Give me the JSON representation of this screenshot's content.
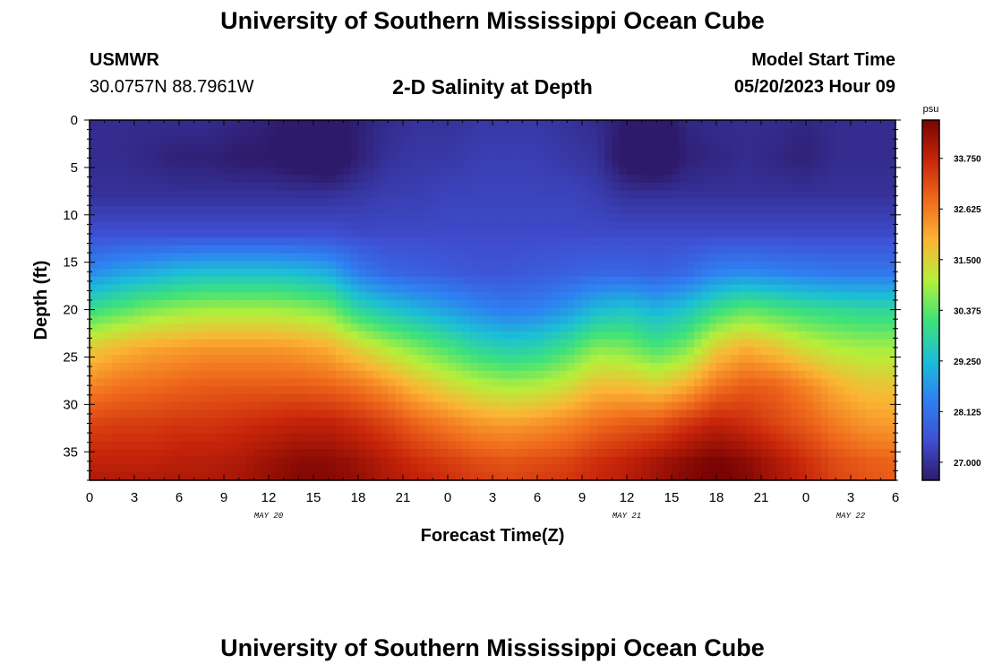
{
  "header": {
    "title": "University of Southern Mississippi Ocean Cube",
    "station_name": "USMWR",
    "station_coords": "30.0757N  88.7961W",
    "chart_title": "2-D Salinity at Depth",
    "model_label": "Model Start Time",
    "model_time": "05/20/2023 Hour 09"
  },
  "footer": {
    "title": "University of Southern Mississippi Ocean Cube"
  },
  "chart_data": {
    "type": "heatmap",
    "title": "2-D Salinity at Depth",
    "xlabel": "Forecast Time(Z)",
    "ylabel": "Depth (ft)",
    "x_tick_labels": [
      "0",
      "3",
      "6",
      "9",
      "12",
      "15",
      "18",
      "21",
      "0",
      "3",
      "6",
      "9",
      "12",
      "15",
      "18",
      "21",
      "0",
      "3",
      "6"
    ],
    "x_hours": [
      0,
      3,
      6,
      9,
      12,
      15,
      18,
      21,
      24,
      27,
      30,
      33,
      36,
      39,
      42,
      45,
      48,
      51,
      54
    ],
    "date_labels": [
      {
        "text": "MAY 20",
        "hour": 12
      },
      {
        "text": "MAY 21",
        "hour": 36
      },
      {
        "text": "MAY 22",
        "hour": 51
      }
    ],
    "x_range_hours": [
      0,
      54
    ],
    "y_ticks": [
      0,
      5,
      10,
      15,
      20,
      25,
      30,
      35
    ],
    "ylim": [
      0,
      38
    ],
    "y_inverted": true,
    "colorbar": {
      "unit": "psu",
      "ticks": [
        27.0,
        28.125,
        29.25,
        30.375,
        31.5,
        32.625,
        33.75
      ],
      "tick_labels": [
        "27.000",
        "28.125",
        "29.250",
        "30.375",
        "31.500",
        "32.625",
        "33.750"
      ],
      "range": [
        26.6,
        34.6
      ],
      "colors": [
        "#2e1a6b",
        "#3f4fd3",
        "#2f7ff2",
        "#1bbfd6",
        "#3ee27a",
        "#b6ef3a",
        "#fbb534",
        "#f06a1c",
        "#c8250a",
        "#7a0403"
      ]
    },
    "grid": {
      "hours": [
        0,
        2,
        4,
        6,
        8,
        10,
        12,
        14,
        16,
        18,
        20,
        22,
        24,
        26,
        28,
        30,
        32,
        34,
        36,
        38,
        40,
        42,
        44,
        46,
        48,
        50,
        52,
        54
      ],
      "depths": [
        0,
        4,
        8,
        12,
        16,
        20,
        24,
        28,
        32,
        36,
        38
      ],
      "values": [
        [
          26.9,
          26.9,
          26.9,
          26.9,
          26.9,
          26.8,
          26.7,
          26.5,
          26.4,
          26.7,
          26.9,
          27.0,
          27.0,
          27.1,
          27.1,
          27.1,
          27.0,
          26.9,
          26.6,
          26.4,
          26.8,
          26.9,
          26.9,
          26.9,
          26.8,
          26.9,
          26.9,
          26.9
        ],
        [
          26.9,
          26.9,
          26.8,
          26.7,
          26.7,
          26.6,
          26.6,
          26.4,
          26.2,
          26.7,
          27.0,
          27.1,
          27.1,
          27.2,
          27.2,
          27.2,
          27.1,
          27.0,
          26.4,
          26.2,
          26.7,
          26.8,
          26.9,
          26.8,
          26.7,
          26.9,
          26.9,
          26.9
        ],
        [
          27.0,
          27.0,
          27.0,
          27.0,
          27.0,
          27.0,
          27.0,
          27.0,
          27.0,
          27.1,
          27.2,
          27.2,
          27.3,
          27.3,
          27.3,
          27.3,
          27.3,
          27.2,
          27.0,
          27.0,
          27.0,
          27.0,
          27.0,
          27.0,
          27.0,
          27.0,
          27.0,
          27.0
        ],
        [
          27.5,
          27.5,
          27.5,
          27.5,
          27.5,
          27.5,
          27.5,
          27.5,
          27.5,
          27.4,
          27.4,
          27.4,
          27.4,
          27.4,
          27.4,
          27.4,
          27.4,
          27.4,
          27.4,
          27.4,
          27.4,
          27.4,
          27.4,
          27.4,
          27.4,
          27.4,
          27.4,
          27.4
        ],
        [
          28.5,
          28.8,
          29.0,
          29.2,
          29.3,
          29.3,
          29.3,
          29.2,
          29.0,
          28.3,
          27.9,
          27.8,
          27.7,
          27.6,
          27.6,
          27.7,
          27.8,
          27.9,
          27.9,
          27.8,
          28.0,
          28.4,
          28.5,
          28.4,
          28.3,
          28.2,
          28.2,
          28.2
        ],
        [
          30.0,
          30.3,
          30.6,
          30.8,
          30.9,
          30.9,
          30.9,
          30.8,
          30.6,
          29.8,
          29.4,
          29.1,
          28.8,
          28.5,
          28.3,
          28.4,
          28.7,
          29.2,
          29.4,
          29.1,
          29.4,
          30.0,
          30.4,
          30.2,
          30.0,
          29.9,
          29.8,
          29.8
        ],
        [
          31.6,
          31.9,
          32.1,
          32.2,
          32.3,
          32.3,
          32.3,
          32.2,
          32.0,
          31.5,
          31.0,
          30.6,
          30.2,
          29.8,
          29.6,
          29.7,
          30.1,
          30.7,
          30.6,
          30.2,
          30.6,
          31.6,
          32.0,
          31.7,
          31.3,
          31.0,
          30.9,
          30.9
        ],
        [
          32.5,
          32.7,
          32.8,
          32.9,
          33.0,
          33.0,
          33.0,
          33.0,
          32.9,
          32.7,
          32.3,
          31.8,
          31.4,
          31.1,
          30.9,
          31.0,
          31.3,
          31.8,
          31.8,
          31.6,
          32.0,
          32.7,
          33.0,
          32.9,
          32.5,
          32.0,
          31.7,
          31.7
        ],
        [
          33.3,
          33.4,
          33.4,
          33.5,
          33.5,
          33.6,
          33.7,
          33.8,
          33.8,
          33.6,
          33.3,
          32.9,
          32.6,
          32.3,
          32.2,
          32.3,
          32.5,
          32.8,
          33.0,
          33.1,
          33.5,
          33.8,
          33.6,
          33.3,
          33.0,
          32.6,
          32.3,
          32.2
        ],
        [
          33.8,
          33.8,
          33.8,
          33.9,
          33.9,
          34.0,
          34.2,
          34.4,
          34.4,
          34.2,
          33.9,
          33.6,
          33.4,
          33.2,
          33.1,
          33.2,
          33.3,
          33.6,
          33.8,
          34.1,
          34.4,
          34.6,
          34.4,
          34.0,
          33.6,
          33.2,
          33.0,
          32.9
        ],
        [
          34.0,
          34.0,
          34.0,
          34.0,
          34.0,
          34.1,
          34.3,
          34.5,
          34.5,
          34.3,
          34.0,
          33.8,
          33.6,
          33.4,
          33.3,
          33.4,
          33.5,
          33.7,
          33.9,
          34.2,
          34.5,
          34.7,
          34.5,
          34.1,
          33.7,
          33.3,
          33.1,
          33.0
        ]
      ]
    }
  }
}
